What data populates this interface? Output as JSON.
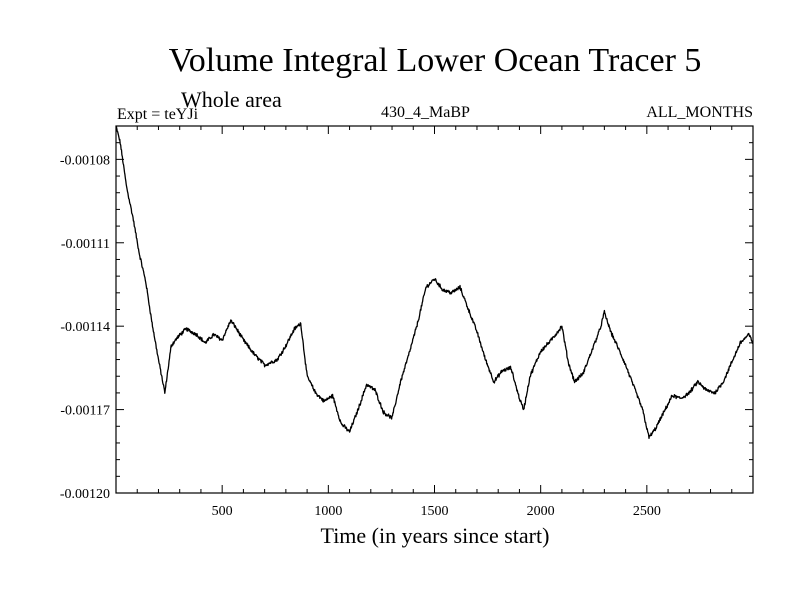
{
  "header": {
    "title": "Volume Integral Lower Ocean Tracer 5",
    "subtitle": "Whole area",
    "expt": "Expt = teYJi",
    "run": "430_4_MaBP",
    "months": "ALL_MONTHS"
  },
  "chart_data": {
    "type": "line",
    "title": "Volume Integral Lower Ocean Tracer 5",
    "subtitle": "Whole area",
    "xlabel": "Time (in years since start)",
    "ylabel": "",
    "xlim": [
      0,
      3000
    ],
    "ylim": [
      -0.0012,
      -0.001068
    ],
    "x_ticks": [
      500,
      1000,
      1500,
      2000,
      2500
    ],
    "x_tick_labels": [
      "500",
      "1000",
      "1500",
      "2000",
      "2500"
    ],
    "y_ticks": [
      -0.0012,
      -0.00117,
      -0.00114,
      -0.00111,
      -0.00108
    ],
    "y_tick_labels": [
      "-0.00120",
      "-0.00117",
      "-0.00114",
      "-0.00111",
      "-0.00108"
    ],
    "grid": false,
    "series": [
      {
        "name": "Tracer 5",
        "color": "#000000",
        "noise": 6e-07,
        "x": [
          0,
          20,
          50,
          80,
          110,
          140,
          170,
          200,
          230,
          260,
          290,
          330,
          380,
          420,
          460,
          500,
          540,
          560,
          600,
          650,
          700,
          760,
          800,
          840,
          870,
          900,
          940,
          980,
          1020,
          1060,
          1100,
          1140,
          1180,
          1220,
          1260,
          1300,
          1340,
          1380,
          1420,
          1460,
          1500,
          1540,
          1580,
          1620,
          1660,
          1700,
          1740,
          1780,
          1820,
          1860,
          1900,
          1920,
          1950,
          2000,
          2050,
          2100,
          2130,
          2160,
          2200,
          2240,
          2280,
          2300,
          2330,
          2360,
          2400,
          2440,
          2480,
          2510,
          2540,
          2580,
          2620,
          2660,
          2700,
          2740,
          2780,
          2820,
          2860,
          2900,
          2940,
          2980,
          3000
        ],
        "y": [
          -0.001068,
          -0.001074,
          -0.00109,
          -0.001101,
          -0.001114,
          -0.001124,
          -0.001139,
          -0.001152,
          -0.001164,
          -0.001147,
          -0.001144,
          -0.001141,
          -0.001143,
          -0.001146,
          -0.001143,
          -0.001145,
          -0.001138,
          -0.00114,
          -0.001145,
          -0.00115,
          -0.001154,
          -0.001152,
          -0.001147,
          -0.001141,
          -0.001139,
          -0.001158,
          -0.001164,
          -0.001167,
          -0.001165,
          -0.001175,
          -0.001178,
          -0.00117,
          -0.001161,
          -0.001163,
          -0.001171,
          -0.001173,
          -0.00116,
          -0.00115,
          -0.001139,
          -0.001126,
          -0.001123,
          -0.001127,
          -0.001128,
          -0.001126,
          -0.001134,
          -0.001142,
          -0.001152,
          -0.00116,
          -0.001156,
          -0.001155,
          -0.001166,
          -0.00117,
          -0.001158,
          -0.001149,
          -0.001145,
          -0.00114,
          -0.001153,
          -0.00116,
          -0.001157,
          -0.001149,
          -0.001141,
          -0.001135,
          -0.001142,
          -0.001147,
          -0.001154,
          -0.001162,
          -0.00117,
          -0.00118,
          -0.001177,
          -0.001171,
          -0.001165,
          -0.001166,
          -0.001164,
          -0.00116,
          -0.001163,
          -0.001164,
          -0.00116,
          -0.001153,
          -0.001146,
          -0.001143,
          -0.001146
        ]
      }
    ]
  }
}
